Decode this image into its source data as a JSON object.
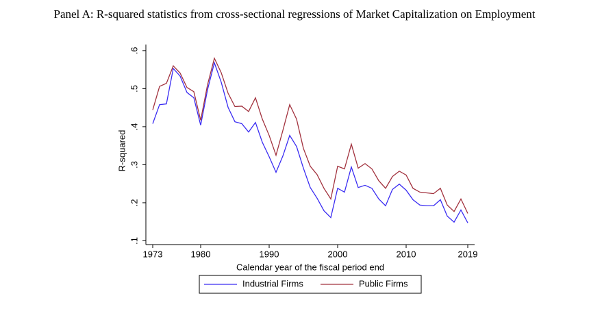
{
  "chart_data": {
    "type": "line",
    "title": "Panel A: R-squared statistics from cross-sectional regressions of Market Capitalization on Employment",
    "x_label": "Calendar year of the fiscal period end",
    "y_label": "R-squared",
    "x": [
      1973,
      1974,
      1975,
      1976,
      1977,
      1978,
      1979,
      1980,
      1981,
      1982,
      1983,
      1984,
      1985,
      1986,
      1987,
      1988,
      1989,
      1990,
      1991,
      1992,
      1993,
      1994,
      1995,
      1996,
      1997,
      1998,
      1999,
      2000,
      2001,
      2002,
      2003,
      2004,
      2005,
      2006,
      2007,
      2008,
      2009,
      2010,
      2011,
      2012,
      2013,
      2014,
      2015,
      2016,
      2017,
      2018,
      2019
    ],
    "series": [
      {
        "name": "Industrial Firms",
        "color": "#3a2cf2",
        "values": [
          0.408,
          0.458,
          0.46,
          0.553,
          0.533,
          0.49,
          0.476,
          0.404,
          0.497,
          0.568,
          0.517,
          0.451,
          0.413,
          0.408,
          0.386,
          0.411,
          0.359,
          0.321,
          0.28,
          0.323,
          0.377,
          0.348,
          0.291,
          0.24,
          0.212,
          0.179,
          0.161,
          0.238,
          0.228,
          0.294,
          0.24,
          0.246,
          0.238,
          0.21,
          0.192,
          0.235,
          0.249,
          0.233,
          0.208,
          0.194,
          0.192,
          0.192,
          0.208,
          0.165,
          0.149,
          0.181,
          0.147
        ]
      },
      {
        "name": "Public Firms",
        "color": "#a2323e",
        "values": [
          0.444,
          0.506,
          0.514,
          0.56,
          0.541,
          0.503,
          0.492,
          0.417,
          0.51,
          0.58,
          0.542,
          0.488,
          0.453,
          0.454,
          0.44,
          0.476,
          0.42,
          0.377,
          0.325,
          0.39,
          0.458,
          0.42,
          0.343,
          0.296,
          0.274,
          0.238,
          0.21,
          0.296,
          0.289,
          0.354,
          0.291,
          0.303,
          0.289,
          0.258,
          0.238,
          0.269,
          0.283,
          0.273,
          0.238,
          0.228,
          0.226,
          0.224,
          0.238,
          0.194,
          0.177,
          0.21,
          0.172
        ]
      }
    ],
    "xlim": [
      1972,
      2020
    ],
    "xticks": [
      1973,
      1980,
      1990,
      2000,
      2010,
      2019
    ],
    "ylim": [
      0.09,
      0.616
    ],
    "yticks": [
      {
        "value": 0.1,
        "label": ".1"
      },
      {
        "value": 0.2,
        "label": ".2"
      },
      {
        "value": 0.3,
        "label": ".3"
      },
      {
        "value": 0.4,
        "label": ".4"
      },
      {
        "value": 0.5,
        "label": ".5"
      },
      {
        "value": 0.6,
        "label": ".6"
      }
    ]
  }
}
